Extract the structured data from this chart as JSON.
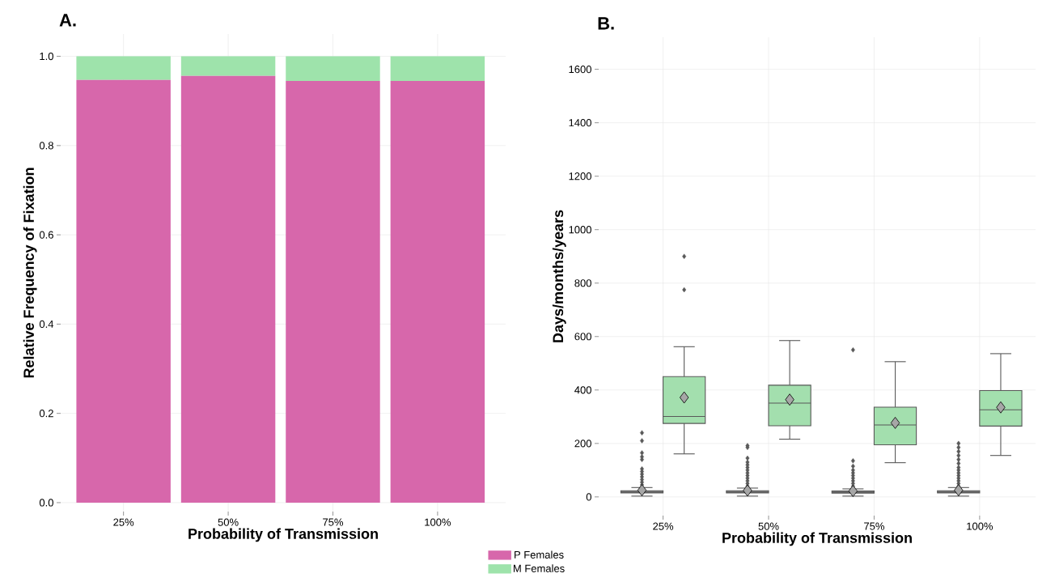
{
  "chart_data": [
    {
      "type": "bar",
      "title": "A.",
      "xlabel": "Probability of Transmission",
      "ylabel": "Relative Frequency of Fixation",
      "categories": [
        "25%",
        "50%",
        "75%",
        "100%"
      ],
      "stacked": true,
      "series": [
        {
          "name": "P Females",
          "color": "#d767ab",
          "values": [
            0.947,
            0.956,
            0.945,
            0.945
          ]
        },
        {
          "name": "M Females",
          "color": "#9ee3ab",
          "values": [
            0.053,
            0.044,
            0.055,
            0.055
          ]
        }
      ],
      "ylim": [
        -0.02,
        1.05
      ],
      "yticks": [
        {
          "value": 0,
          "label": "0.0"
        },
        0.2,
        0.4,
        0.6,
        0.8,
        {
          "value": 1,
          "label": "1.0"
        }
      ],
      "grid": true,
      "legend": "bottom right"
    },
    {
      "type": "box",
      "title": "B.",
      "xlabel": "Probability of Transmission",
      "ylabel": "Days/months/years",
      "categories": [
        "25%",
        "50%",
        "75%",
        "100%"
      ],
      "marker": "diamond",
      "series": [
        {
          "color": "#7f7f7f",
          "boxes": [
            {
              "low": 3,
              "q1": 15,
              "median": 18,
              "q3": 23,
              "high": 35,
              "mean": 25,
              "outliers": [
                45,
                55,
                65,
                75,
                85,
                95,
                105,
                140,
                150,
                165,
                210,
                240
              ]
            },
            {
              "low": 3,
              "q1": 15,
              "median": 18,
              "q3": 23,
              "high": 33,
              "mean": 24,
              "outliers": [
                40,
                50,
                60,
                70,
                80,
                90,
                100,
                110,
                120,
                130,
                145,
                185,
                192
              ]
            },
            {
              "low": 3,
              "q1": 14,
              "median": 17,
              "q3": 22,
              "high": 30,
              "mean": 22,
              "outliers": [
                40,
                50,
                60,
                70,
                80,
                90,
                100,
                115,
                135,
                550
              ]
            },
            {
              "low": 3,
              "q1": 15,
              "median": 18,
              "q3": 23,
              "high": 35,
              "mean": 25,
              "outliers": [
                40,
                50,
                60,
                70,
                80,
                90,
                100,
                110,
                125,
                140,
                155,
                170,
                185,
                200
              ]
            }
          ]
        },
        {
          "color": "#a3dfae",
          "boxes": [
            {
              "low": 161,
              "q1": 275,
              "median": 301,
              "q3": 450,
              "high": 562,
              "mean": 372,
              "outliers": [
                775,
                900
              ]
            },
            {
              "low": 216,
              "q1": 266,
              "median": 351,
              "q3": 418,
              "high": 585,
              "mean": 364
            },
            {
              "low": 128,
              "q1": 195,
              "median": 269,
              "q3": 336,
              "high": 506,
              "mean": 277
            },
            {
              "low": 155,
              "q1": 265,
              "median": 326,
              "q3": 398,
              "high": 536,
              "mean": 335
            }
          ]
        }
      ],
      "ylim": [
        -70,
        1720
      ],
      "yticks": [
        0,
        200,
        400,
        600,
        800,
        1000,
        1200,
        1400,
        1600
      ],
      "grid": true
    }
  ]
}
